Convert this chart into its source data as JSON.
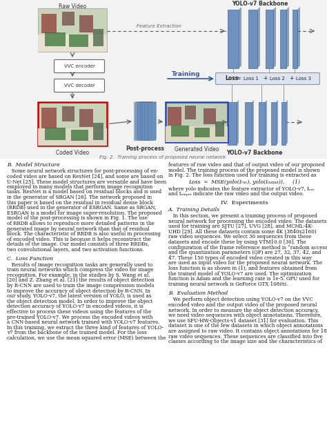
{
  "background_color": "#ffffff",
  "diagram_bg": "#f0f0f0",
  "fig_caption": "Fig. 2.  Training process of proposed neural network.",
  "raw_video_label": "Raw Video",
  "vvc_encoder_label": "VVC encoder",
  "vvc_decoder_label": "VVC decoder",
  "coded_video_label": "Coded Video",
  "post_process_label": "Post-process",
  "generated_video_label": "Generated Video",
  "yolo_backbone_top_label": "YOLO-v7 Backbone",
  "yolo_backbone_bot_label": "YOLO-v7 Backbone",
  "loss_label": "Loss",
  "loss_eq_label": "= Loss 1 + Loss 2 + Loss 3",
  "training_label": "Training",
  "feature_extraction_label": "Feature Extraction",
  "section_B_title": "B.  Model Structure",
  "section_B_text_lines": [
    "   Some neural network structures for post-processing of en-",
    "coded video are based on ResNet [24], and some are based on",
    "U-Net [25]. These model structures are versatile and have been",
    "employed in many models that perform image recognition",
    "tasks. ResNet is a model based on residual blocks and is used",
    "in the generator of SRGAN [26]. The network proposed in",
    "this paper is based on the residual in residual dense block",
    "(RRDB) used in the generator of ESRGAN. Same as SRGAN,",
    "ESRGAN is a model for image super-resolution. The proposed",
    "model of the post-processing is shown in Fig. 1. The use",
    "of RRDB allows to reproduce more detailed patterns in the",
    "generated image by neural network than that of residual",
    "block. The characteristic of RRDB is also useful in processing",
    "of encoded video. This is because it helps reconstruct the",
    "details of the image. Our model consists of three RRDBs,",
    "two convolutional layers, and two activation functions."
  ],
  "section_C_title": "C.  Loss Function",
  "section_C_text_lines": [
    "   Results of image recognition tasks are generally used to",
    "train neural networks which compress the video for image",
    "recognition. For example, in the studies by S. Wang et al.",
    "[20] and Z. Zhang et al. [21] the results of object detection",
    "by R-CNN are used to train the image compression models",
    "to improve the accuracy of object detection by R-CNN. In",
    "our study, YOLO-v7, the latest version of YOLO, is used as",
    "the object detection model. In order to improve the object",
    "detection accuracy of YOLO-v7 in encoded videos, it is",
    "effective to process these videos using the features of the",
    "pre-trained YOLO-v7. We process the encoded videos with",
    "a CNN-based neural network trained with YOLO-v7 features.",
    "In this training, we extract the three kind of features of YOLO-",
    "v7 from the backbone of the trained model. For the loss",
    "calculation, we use the mean squared error (MSE) between the"
  ],
  "right_col_top_lines": [
    "features of raw video and that of output video of our proposed",
    "model. The training process of the proposed model is shown",
    "in Fig. 2. The loss function used for training is extracted as"
  ],
  "loss_eq_display": "Loss  =  MSE(yolo(Iᵣₐᵥ), yolo(Iₒᵤₜₚᵤₜ)),     (1)",
  "loss_eq_where_lines": [
    "where yolo indicates the feature extractor of YOLO-v7, Iᵣₐᵥ",
    "and Iₒᵤₜₚᵤₜ indicate the raw video and the output video."
  ],
  "section_IV_title": "IV.  Eѕperiments",
  "section_A_title": "A.  Training Details",
  "section_A_text_lines": [
    "   In this section, we present a training process of proposed",
    "neural network for processing the encoded video. The datasets",
    "used for training are SJTU [27], UVG [28], and MCML-4K-",
    "UHD [29]. All these datasets contain some 4K (3840x2160)",
    "raw video sequences. We select 30 sequences from these",
    "datasets and encode these by using VTM10.0 [30]. The",
    "configuration of the frame reference method is “random access”,",
    "and the quantization parameters (QP) are 27, 32, 37, 42, and",
    "47. These 150 types of encoded video created in this way",
    "are used as input video for the proposed neural network. The",
    "loss function is as shown in (1), and features obtained from",
    "the trained model of YOLO-v7 are used. The optimization",
    "function is Adam and the learning rate is 1e-5. GPU used for",
    "training neural network is GeForce GTX 1080ti."
  ],
  "section_B2_title": "B.  Evaluation Method",
  "section_B2_text_lines": [
    "   We perform object detection using YOLO-v7 on the VVC",
    "encoded video and the output video of the proposed neural",
    "network. In order to measure the object detection accuracy,",
    "we need video sequences with object annotations. Therefore,",
    "we use SFU-HW-Objects-v1 dataset [31] for evaluation. This",
    "dataset is one of the few datasets in which object annotations",
    "are assigned to raw video. It contains object annotations for 18",
    "raw video sequences. These sequences are classified into five",
    "classes according to the image size and the characteristics of"
  ]
}
